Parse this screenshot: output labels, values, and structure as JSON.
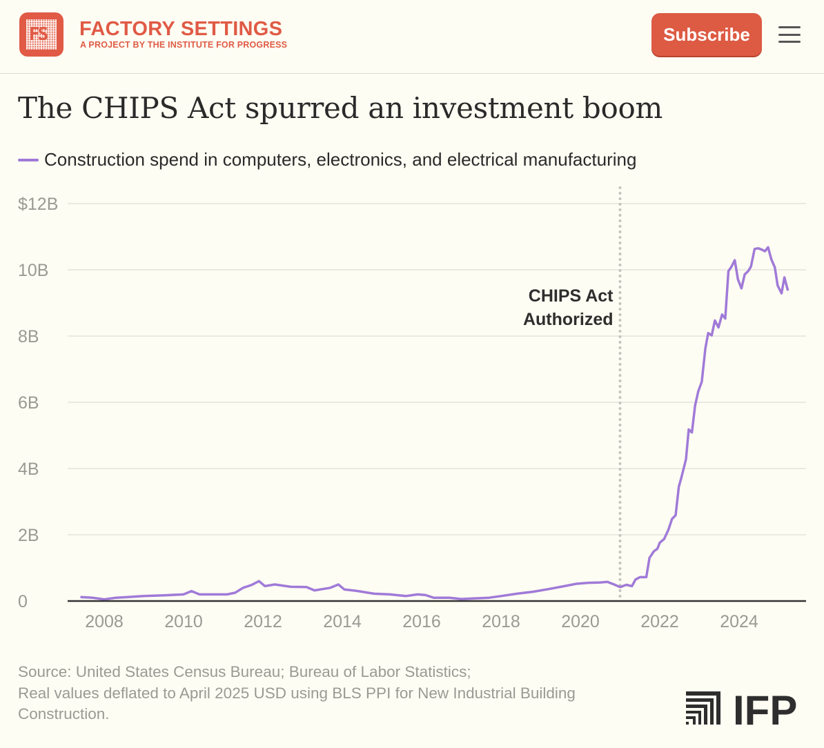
{
  "header": {
    "brand": "FACTORY SETTINGS",
    "tagline": "A PROJECT BY THE INSTITUTE FOR PROGRESS",
    "logo_text": "FS",
    "subscribe_label": "Subscribe",
    "menu_icon": "hamburger-icon"
  },
  "colors": {
    "accent": "#e05a45",
    "line": "#a07ad8",
    "background": "#fdfdf3"
  },
  "chart_data": {
    "type": "line",
    "title": "The CHIPS Act spurred an investment boom",
    "legend": [
      {
        "name": "Construction spend in computers, electronics, and electrical manufacturing",
        "color": "#a07ad8"
      }
    ],
    "xlabel": "",
    "ylabel": "",
    "ylim": [
      0,
      12
    ],
    "xlim": [
      2007,
      2025.8
    ],
    "y_ticks": [
      {
        "v": 0,
        "label": "0"
      },
      {
        "v": 2,
        "label": "2B"
      },
      {
        "v": 4,
        "label": "4B"
      },
      {
        "v": 6,
        "label": "6B"
      },
      {
        "v": 8,
        "label": "8B"
      },
      {
        "v": 10,
        "label": "10B"
      },
      {
        "v": 12,
        "label": "$12B"
      }
    ],
    "x_ticks": [
      {
        "v": 2008,
        "label": "2008"
      },
      {
        "v": 2010,
        "label": "2010"
      },
      {
        "v": 2012,
        "label": "2012"
      },
      {
        "v": 2014,
        "label": "2014"
      },
      {
        "v": 2016,
        "label": "2016"
      },
      {
        "v": 2018,
        "label": "2018"
      },
      {
        "v": 2020,
        "label": "2020"
      },
      {
        "v": 2022,
        "label": "2022"
      },
      {
        "v": 2024,
        "label": "2024"
      }
    ],
    "grid": true,
    "annotation": {
      "x": 2021.0,
      "lines": [
        "CHIPS Act",
        "Authorized"
      ]
    },
    "series": [
      {
        "name": "Construction spend",
        "x": [
          2007.4,
          2007.7,
          2008.0,
          2008.3,
          2008.6,
          2009.0,
          2009.5,
          2010.0,
          2010.2,
          2010.4,
          2010.8,
          2011.1,
          2011.3,
          2011.5,
          2011.7,
          2011.9,
          2012.05,
          2012.3,
          2012.7,
          2013.1,
          2013.3,
          2013.5,
          2013.7,
          2013.9,
          2014.05,
          2014.4,
          2014.8,
          2015.2,
          2015.6,
          2015.9,
          2016.1,
          2016.3,
          2016.7,
          2017.0,
          2017.3,
          2017.7,
          2018.0,
          2018.4,
          2018.8,
          2019.2,
          2019.6,
          2019.9,
          2020.2,
          2020.5,
          2020.68,
          2020.85,
          2021.0,
          2021.16,
          2021.3,
          2021.39,
          2021.5,
          2021.66,
          2021.74,
          2021.85,
          2021.94,
          2022.0,
          2022.11,
          2022.22,
          2022.31,
          2022.4,
          2022.48,
          2022.54,
          2022.66,
          2022.73,
          2022.81,
          2022.89,
          2022.97,
          2023.06,
          2023.15,
          2023.22,
          2023.31,
          2023.39,
          2023.48,
          2023.57,
          2023.65,
          2023.73,
          2023.81,
          2023.89,
          2023.97,
          2024.06,
          2024.14,
          2024.23,
          2024.3,
          2024.39,
          2024.48,
          2024.57,
          2024.65,
          2024.73,
          2024.81,
          2024.9,
          2024.97,
          2025.07,
          2025.14,
          2025.23
        ],
        "y": [
          0.12,
          0.1,
          0.05,
          0.1,
          0.12,
          0.15,
          0.17,
          0.2,
          0.3,
          0.2,
          0.2,
          0.2,
          0.25,
          0.4,
          0.48,
          0.6,
          0.45,
          0.5,
          0.43,
          0.42,
          0.32,
          0.36,
          0.4,
          0.5,
          0.35,
          0.3,
          0.22,
          0.2,
          0.15,
          0.2,
          0.18,
          0.1,
          0.1,
          0.06,
          0.08,
          0.1,
          0.15,
          0.22,
          0.28,
          0.36,
          0.45,
          0.52,
          0.55,
          0.56,
          0.58,
          0.5,
          0.42,
          0.49,
          0.45,
          0.65,
          0.72,
          0.72,
          1.3,
          1.5,
          1.58,
          1.76,
          1.87,
          2.16,
          2.48,
          2.59,
          3.45,
          3.7,
          4.28,
          5.18,
          5.09,
          5.9,
          6.33,
          6.62,
          7.63,
          8.09,
          8.02,
          8.47,
          8.26,
          8.65,
          8.53,
          9.96,
          10.1,
          10.29,
          9.71,
          9.44,
          9.86,
          9.96,
          10.1,
          10.63,
          10.65,
          10.61,
          10.56,
          10.68,
          10.32,
          10.07,
          9.53,
          9.29,
          9.77,
          9.37
        ]
      }
    ]
  },
  "footer": {
    "source_lines": [
      "Source: United States Census Bureau; Bureau of Labor Statistics;",
      "Real values deflated to April 2025 USD using BLS PPI for New Industrial Building",
      "Construction."
    ],
    "logo_text": "IFP"
  }
}
